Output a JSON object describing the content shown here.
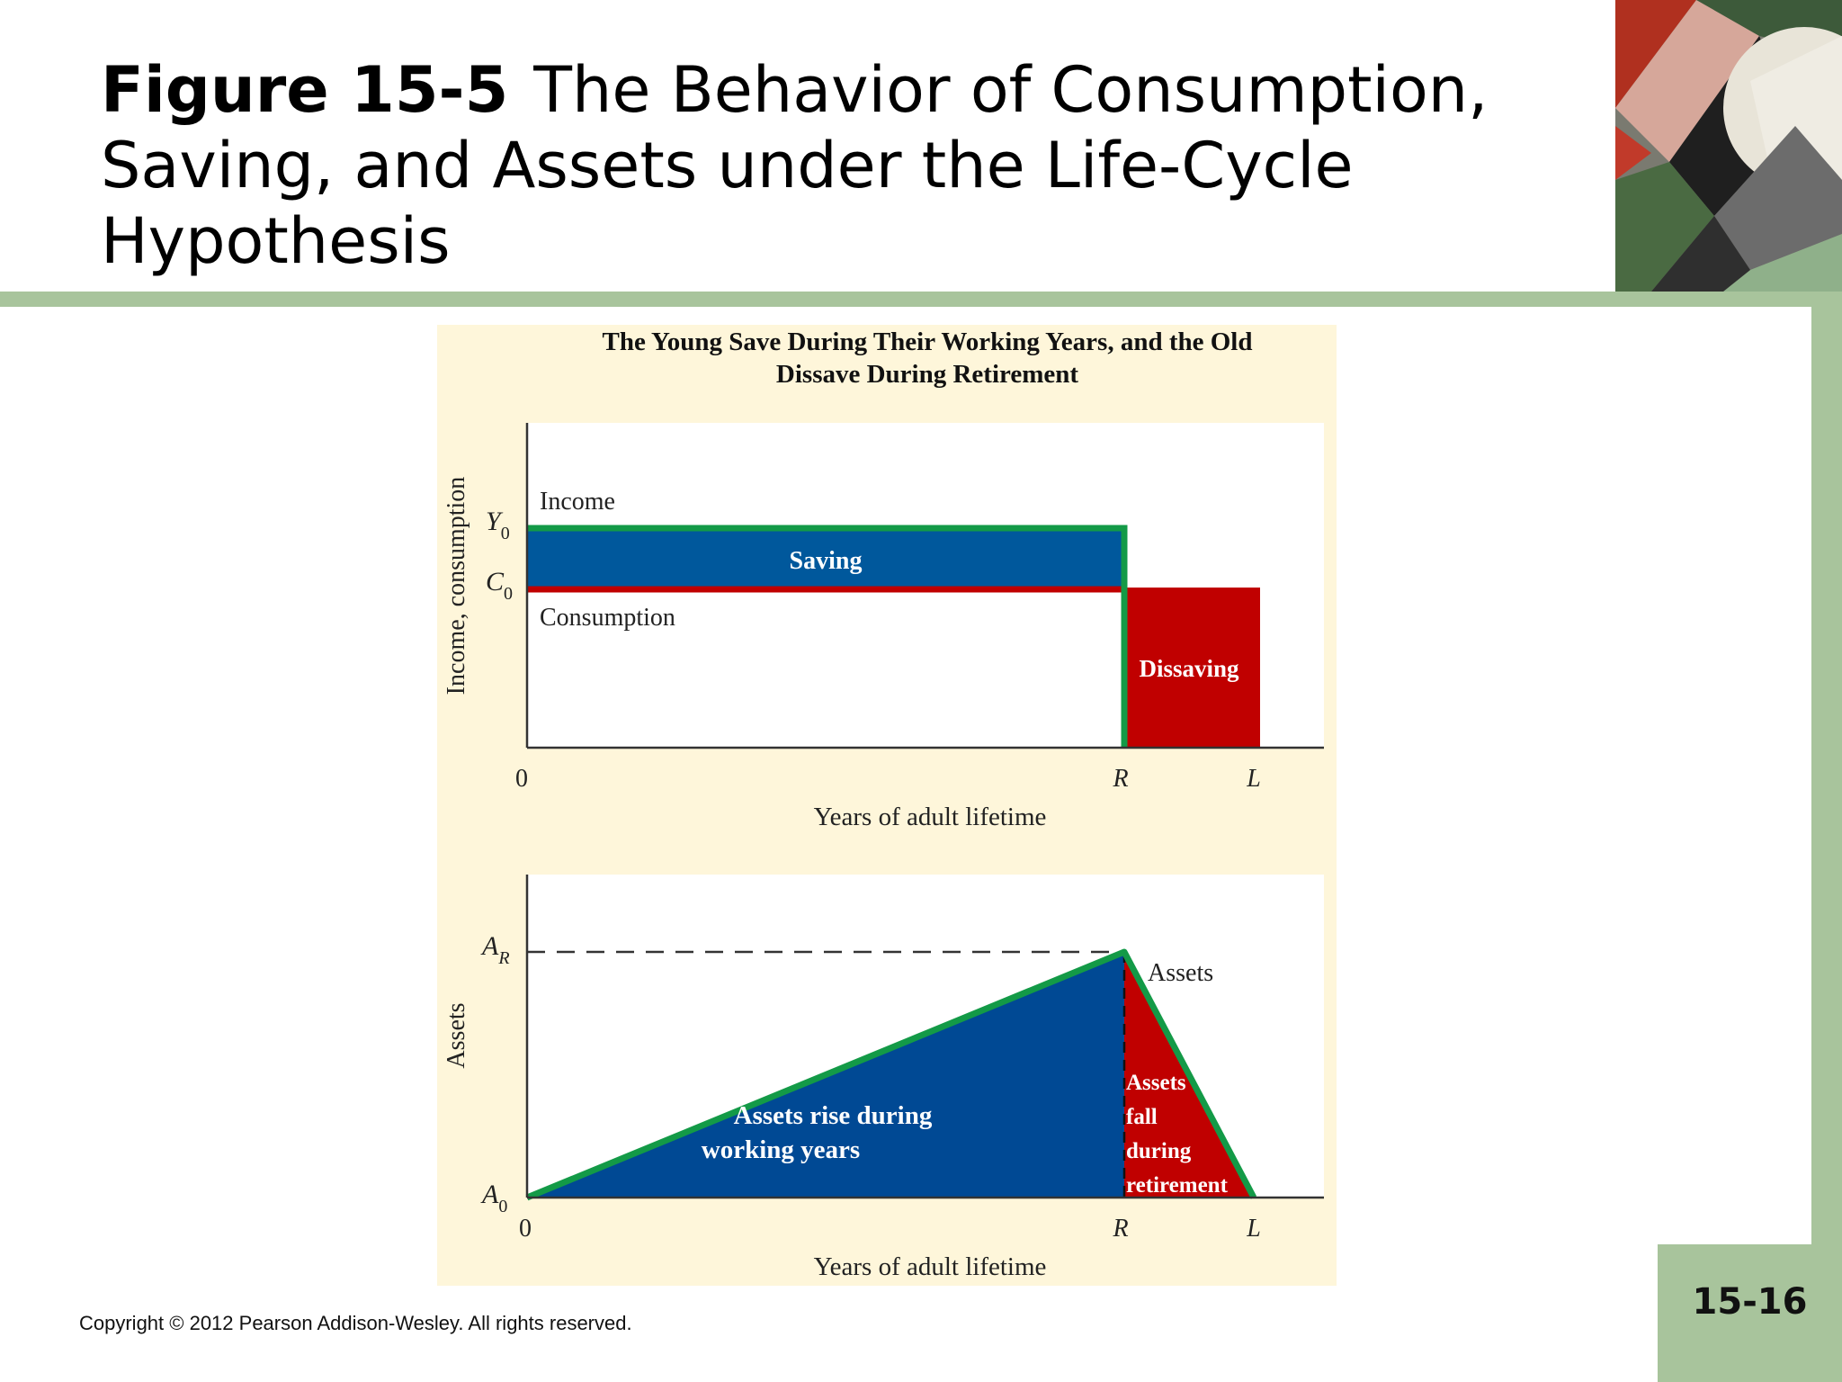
{
  "slide": {
    "figure_number": "Figure 15-5",
    "title": "The Behavior of Consumption, Saving, and Assets under the Life-Cycle Hypothesis",
    "copyright": "Copyright © 2012 Pearson Addison-Wesley. All rights reserved.",
    "page_number": "15-16"
  },
  "figure": {
    "title_line1": "The Young Save During Their Working Years, and the Old",
    "title_line2": "Dissave During Retirement",
    "colors": {
      "panel_bg": "#fef6da",
      "saving_blue": "#00589c",
      "assets_blue": "#004994",
      "dissave_red": "#c00000",
      "income_green": "#139a47"
    },
    "top_panel": {
      "y_axis_label": "Income, consumption",
      "y_tick_income": "Y",
      "y_tick_income_sub": "0",
      "y_tick_consumption": "C",
      "y_tick_consumption_sub": "0",
      "x_tick_origin": "0",
      "x_tick_retire": "R",
      "x_tick_life": "L",
      "x_axis_label": "Years of adult lifetime",
      "label_income": "Income",
      "label_consumption": "Consumption",
      "label_saving": "Saving",
      "label_dissaving": "Dissaving"
    },
    "bottom_panel": {
      "y_axis_label": "Assets",
      "y_tick_peak": "A",
      "y_tick_peak_sub": "R",
      "y_tick_base": "A",
      "y_tick_base_sub": "0",
      "x_tick_origin": "0",
      "x_tick_retire": "R",
      "x_tick_life": "L",
      "x_axis_label": "Years of adult lifetime",
      "label_assets": "Assets",
      "label_rise_line1": "Assets rise during",
      "label_rise_line2": "working years",
      "label_fall_line1": "Assets",
      "label_fall_line2": "fall",
      "label_fall_line3": "during",
      "label_fall_line4": "retirement"
    }
  }
}
